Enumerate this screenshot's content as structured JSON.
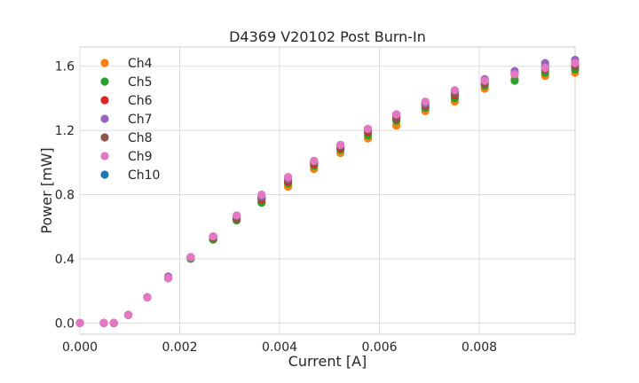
{
  "chart_data": {
    "type": "scatter",
    "title": "D4369 V20102 Post Burn-In",
    "xlabel": "Current [A]",
    "ylabel": "Power [mW]",
    "xlim": [
      0,
      0.00992
    ],
    "ylim": [
      -0.07,
      1.72
    ],
    "x_ticks": [
      0.0,
      0.002,
      0.004,
      0.006,
      0.008
    ],
    "x_tick_labels": [
      "0.000",
      "0.002",
      "0.004",
      "0.006",
      "0.008"
    ],
    "y_ticks": [
      0.0,
      0.4,
      0.8,
      1.2,
      1.6
    ],
    "y_tick_labels": [
      "0.0",
      "0.4",
      "0.8",
      "1.2",
      "1.6"
    ],
    "grid": true,
    "legend_position": "top-left",
    "x": [
      0.0,
      0.00048,
      0.00068,
      0.00097,
      0.00135,
      0.00177,
      0.00222,
      0.00267,
      0.00314,
      0.00364,
      0.00417,
      0.00469,
      0.00522,
      0.00577,
      0.00634,
      0.00692,
      0.00751,
      0.00811,
      0.00871,
      0.00932,
      0.00992
    ],
    "series": [
      {
        "name": "Ch4",
        "color": "#ff7f0e",
        "values": [
          0.0,
          0.0,
          0.0,
          0.05,
          0.16,
          0.28,
          0.4,
          0.52,
          0.64,
          0.75,
          0.85,
          0.96,
          1.06,
          1.15,
          1.23,
          1.32,
          1.38,
          1.46,
          1.52,
          1.54,
          1.56
        ]
      },
      {
        "name": "Ch5",
        "color": "#2ca02c",
        "values": [
          0.0,
          0.0,
          0.0,
          0.05,
          0.16,
          0.28,
          0.4,
          0.52,
          0.64,
          0.75,
          0.87,
          0.98,
          1.08,
          1.17,
          1.26,
          1.34,
          1.4,
          1.48,
          1.51,
          1.56,
          1.58
        ]
      },
      {
        "name": "Ch6",
        "color": "#d62728",
        "values": [
          0.0,
          0.0,
          0.0,
          0.05,
          0.16,
          0.28,
          0.41,
          0.53,
          0.65,
          0.77,
          0.88,
          0.99,
          1.09,
          1.19,
          1.28,
          1.36,
          1.42,
          1.5,
          1.55,
          1.58,
          1.61
        ]
      },
      {
        "name": "Ch7",
        "color": "#9467bd",
        "values": [
          0.0,
          0.0,
          0.0,
          0.05,
          0.16,
          0.29,
          0.41,
          0.54,
          0.67,
          0.79,
          0.9,
          1.01,
          1.11,
          1.21,
          1.3,
          1.37,
          1.45,
          1.52,
          1.57,
          1.62,
          1.64
        ]
      },
      {
        "name": "Ch8",
        "color": "#8c564b",
        "values": [
          0.0,
          0.0,
          0.0,
          0.05,
          0.16,
          0.28,
          0.41,
          0.53,
          0.65,
          0.78,
          0.89,
          1.0,
          1.1,
          1.2,
          1.27,
          1.35,
          1.43,
          1.49,
          1.55,
          1.58,
          1.6
        ]
      },
      {
        "name": "Ch9",
        "color": "#e377c2",
        "values": [
          0.0,
          0.0,
          0.0,
          0.05,
          0.16,
          0.28,
          0.41,
          0.54,
          0.67,
          0.8,
          0.91,
          1.01,
          1.11,
          1.21,
          1.3,
          1.38,
          1.45,
          1.51,
          1.55,
          1.59,
          1.62
        ]
      },
      {
        "name": "Ch10",
        "color": "#1f77b4",
        "values": [
          0.0,
          0.0,
          0.0,
          0.05,
          0.16,
          0.28,
          0.41,
          0.53,
          0.66,
          0.78,
          0.89,
          1.0,
          1.1,
          1.2,
          1.29,
          1.37,
          1.44,
          1.51,
          1.56,
          1.6,
          1.62
        ]
      }
    ],
    "draw_order": [
      "Ch10",
      "Ch4",
      "Ch5",
      "Ch6",
      "Ch8",
      "Ch7",
      "Ch9"
    ]
  }
}
